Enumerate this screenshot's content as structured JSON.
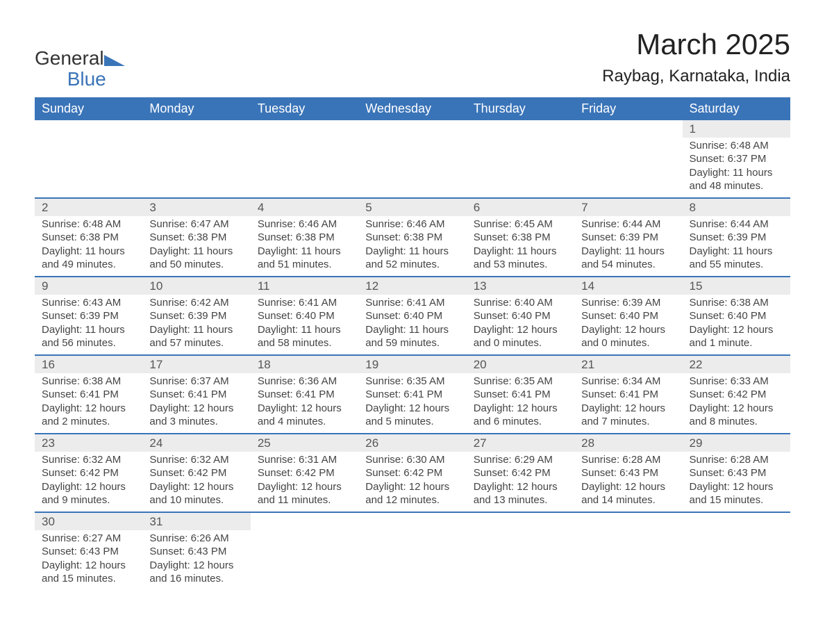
{
  "logo": {
    "text_general": "General",
    "text_blue": "Blue"
  },
  "title": "March 2025",
  "location": "Raybag, Karnataka, India",
  "colors": {
    "header_bg": "#3a74b8",
    "header_text": "#ffffff",
    "daynum_bg": "#ececec",
    "border": "#3a74b8",
    "body_text": "#444444",
    "page_bg": "#ffffff"
  },
  "typography": {
    "title_fontsize": 42,
    "location_fontsize": 24,
    "header_fontsize": 18,
    "daynum_fontsize": 17,
    "detail_fontsize": 15
  },
  "days_of_week": [
    "Sunday",
    "Monday",
    "Tuesday",
    "Wednesday",
    "Thursday",
    "Friday",
    "Saturday"
  ],
  "weeks": [
    [
      null,
      null,
      null,
      null,
      null,
      null,
      {
        "n": "1",
        "sunrise": "Sunrise: 6:48 AM",
        "sunset": "Sunset: 6:37 PM",
        "daylight": "Daylight: 11 hours and 48 minutes."
      }
    ],
    [
      {
        "n": "2",
        "sunrise": "Sunrise: 6:48 AM",
        "sunset": "Sunset: 6:38 PM",
        "daylight": "Daylight: 11 hours and 49 minutes."
      },
      {
        "n": "3",
        "sunrise": "Sunrise: 6:47 AM",
        "sunset": "Sunset: 6:38 PM",
        "daylight": "Daylight: 11 hours and 50 minutes."
      },
      {
        "n": "4",
        "sunrise": "Sunrise: 6:46 AM",
        "sunset": "Sunset: 6:38 PM",
        "daylight": "Daylight: 11 hours and 51 minutes."
      },
      {
        "n": "5",
        "sunrise": "Sunrise: 6:46 AM",
        "sunset": "Sunset: 6:38 PM",
        "daylight": "Daylight: 11 hours and 52 minutes."
      },
      {
        "n": "6",
        "sunrise": "Sunrise: 6:45 AM",
        "sunset": "Sunset: 6:38 PM",
        "daylight": "Daylight: 11 hours and 53 minutes."
      },
      {
        "n": "7",
        "sunrise": "Sunrise: 6:44 AM",
        "sunset": "Sunset: 6:39 PM",
        "daylight": "Daylight: 11 hours and 54 minutes."
      },
      {
        "n": "8",
        "sunrise": "Sunrise: 6:44 AM",
        "sunset": "Sunset: 6:39 PM",
        "daylight": "Daylight: 11 hours and 55 minutes."
      }
    ],
    [
      {
        "n": "9",
        "sunrise": "Sunrise: 6:43 AM",
        "sunset": "Sunset: 6:39 PM",
        "daylight": "Daylight: 11 hours and 56 minutes."
      },
      {
        "n": "10",
        "sunrise": "Sunrise: 6:42 AM",
        "sunset": "Sunset: 6:39 PM",
        "daylight": "Daylight: 11 hours and 57 minutes."
      },
      {
        "n": "11",
        "sunrise": "Sunrise: 6:41 AM",
        "sunset": "Sunset: 6:40 PM",
        "daylight": "Daylight: 11 hours and 58 minutes."
      },
      {
        "n": "12",
        "sunrise": "Sunrise: 6:41 AM",
        "sunset": "Sunset: 6:40 PM",
        "daylight": "Daylight: 11 hours and 59 minutes."
      },
      {
        "n": "13",
        "sunrise": "Sunrise: 6:40 AM",
        "sunset": "Sunset: 6:40 PM",
        "daylight": "Daylight: 12 hours and 0 minutes."
      },
      {
        "n": "14",
        "sunrise": "Sunrise: 6:39 AM",
        "sunset": "Sunset: 6:40 PM",
        "daylight": "Daylight: 12 hours and 0 minutes."
      },
      {
        "n": "15",
        "sunrise": "Sunrise: 6:38 AM",
        "sunset": "Sunset: 6:40 PM",
        "daylight": "Daylight: 12 hours and 1 minute."
      }
    ],
    [
      {
        "n": "16",
        "sunrise": "Sunrise: 6:38 AM",
        "sunset": "Sunset: 6:41 PM",
        "daylight": "Daylight: 12 hours and 2 minutes."
      },
      {
        "n": "17",
        "sunrise": "Sunrise: 6:37 AM",
        "sunset": "Sunset: 6:41 PM",
        "daylight": "Daylight: 12 hours and 3 minutes."
      },
      {
        "n": "18",
        "sunrise": "Sunrise: 6:36 AM",
        "sunset": "Sunset: 6:41 PM",
        "daylight": "Daylight: 12 hours and 4 minutes."
      },
      {
        "n": "19",
        "sunrise": "Sunrise: 6:35 AM",
        "sunset": "Sunset: 6:41 PM",
        "daylight": "Daylight: 12 hours and 5 minutes."
      },
      {
        "n": "20",
        "sunrise": "Sunrise: 6:35 AM",
        "sunset": "Sunset: 6:41 PM",
        "daylight": "Daylight: 12 hours and 6 minutes."
      },
      {
        "n": "21",
        "sunrise": "Sunrise: 6:34 AM",
        "sunset": "Sunset: 6:41 PM",
        "daylight": "Daylight: 12 hours and 7 minutes."
      },
      {
        "n": "22",
        "sunrise": "Sunrise: 6:33 AM",
        "sunset": "Sunset: 6:42 PM",
        "daylight": "Daylight: 12 hours and 8 minutes."
      }
    ],
    [
      {
        "n": "23",
        "sunrise": "Sunrise: 6:32 AM",
        "sunset": "Sunset: 6:42 PM",
        "daylight": "Daylight: 12 hours and 9 minutes."
      },
      {
        "n": "24",
        "sunrise": "Sunrise: 6:32 AM",
        "sunset": "Sunset: 6:42 PM",
        "daylight": "Daylight: 12 hours and 10 minutes."
      },
      {
        "n": "25",
        "sunrise": "Sunrise: 6:31 AM",
        "sunset": "Sunset: 6:42 PM",
        "daylight": "Daylight: 12 hours and 11 minutes."
      },
      {
        "n": "26",
        "sunrise": "Sunrise: 6:30 AM",
        "sunset": "Sunset: 6:42 PM",
        "daylight": "Daylight: 12 hours and 12 minutes."
      },
      {
        "n": "27",
        "sunrise": "Sunrise: 6:29 AM",
        "sunset": "Sunset: 6:42 PM",
        "daylight": "Daylight: 12 hours and 13 minutes."
      },
      {
        "n": "28",
        "sunrise": "Sunrise: 6:28 AM",
        "sunset": "Sunset: 6:43 PM",
        "daylight": "Daylight: 12 hours and 14 minutes."
      },
      {
        "n": "29",
        "sunrise": "Sunrise: 6:28 AM",
        "sunset": "Sunset: 6:43 PM",
        "daylight": "Daylight: 12 hours and 15 minutes."
      }
    ],
    [
      {
        "n": "30",
        "sunrise": "Sunrise: 6:27 AM",
        "sunset": "Sunset: 6:43 PM",
        "daylight": "Daylight: 12 hours and 15 minutes."
      },
      {
        "n": "31",
        "sunrise": "Sunrise: 6:26 AM",
        "sunset": "Sunset: 6:43 PM",
        "daylight": "Daylight: 12 hours and 16 minutes."
      },
      null,
      null,
      null,
      null,
      null
    ]
  ]
}
